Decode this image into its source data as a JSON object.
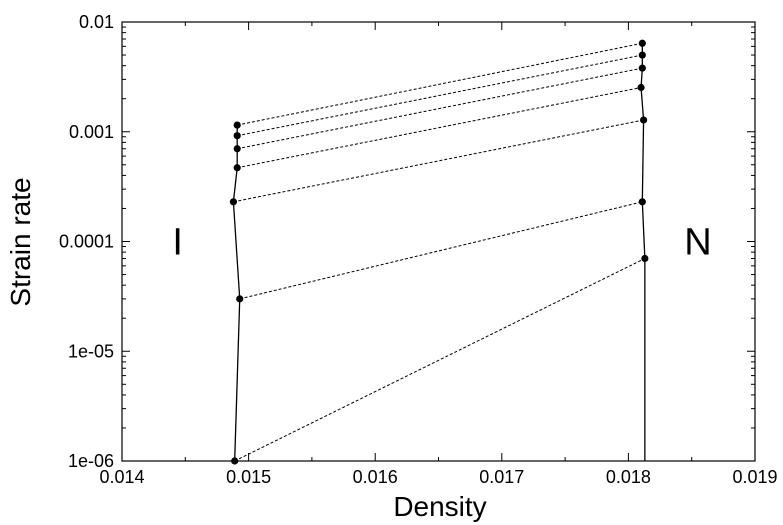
{
  "chart_data": {
    "type": "scatter",
    "xlabel": "Density",
    "ylabel": "Strain rate",
    "xlim": [
      0.014,
      0.019
    ],
    "ylim": [
      1e-06,
      0.01
    ],
    "yscale": "log",
    "grid": false,
    "x_ticks": [
      {
        "value": 0.014,
        "label": "0.014"
      },
      {
        "value": 0.015,
        "label": "0.015"
      },
      {
        "value": 0.016,
        "label": "0.016"
      },
      {
        "value": 0.017,
        "label": "0.017"
      },
      {
        "value": 0.018,
        "label": "0.018"
      },
      {
        "value": 0.019,
        "label": "0.019"
      }
    ],
    "y_ticks": [
      {
        "value": 1e-06,
        "label": "1e-06"
      },
      {
        "value": 1e-05,
        "label": "1e-05"
      },
      {
        "value": 0.0001,
        "label": "0.0001"
      },
      {
        "value": 0.001,
        "label": "0.001"
      },
      {
        "value": 0.01,
        "label": "0.01"
      }
    ],
    "coexistence_pairs": [
      {
        "strain_rate_I": 1e-06,
        "density_I": 0.01489,
        "strain_rate_N": 7e-05,
        "density_N": 0.01813
      },
      {
        "strain_rate_I": 3e-05,
        "density_I": 0.01493,
        "strain_rate_N": 0.00023,
        "density_N": 0.01811
      },
      {
        "strain_rate_I": 0.00023,
        "density_I": 0.01488,
        "strain_rate_N": 0.00128,
        "density_N": 0.01812
      },
      {
        "strain_rate_I": 0.00047,
        "density_I": 0.01491,
        "strain_rate_N": 0.00253,
        "density_N": 0.0181
      },
      {
        "strain_rate_I": 0.0007,
        "density_I": 0.01491,
        "strain_rate_N": 0.0038,
        "density_N": 0.01811
      },
      {
        "strain_rate_I": 0.00092,
        "density_I": 0.01491,
        "strain_rate_N": 0.005,
        "density_N": 0.01811
      },
      {
        "strain_rate_I": 0.00115,
        "density_I": 0.01491,
        "strain_rate_N": 0.0064,
        "density_N": 0.01811
      }
    ],
    "annotations": [
      {
        "text": "I",
        "x": 0.01444,
        "y": 0.0001
      },
      {
        "text": "N",
        "x": 0.01855,
        "y": 0.0001
      }
    ]
  }
}
